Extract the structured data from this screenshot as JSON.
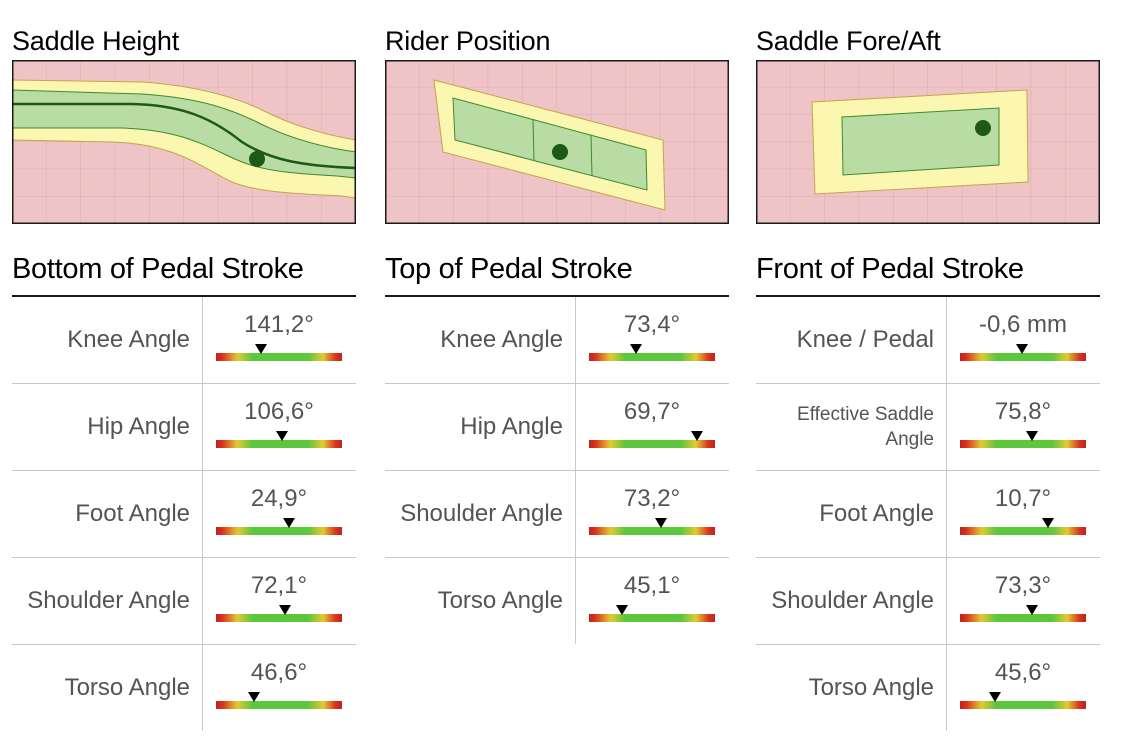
{
  "plots": {
    "saddle_height": {
      "title": "Saddle Height"
    },
    "rider_position": {
      "title": "Rider Position"
    },
    "saddle_fore_aft": {
      "title": "Saddle Fore/Aft"
    }
  },
  "colors": {
    "out_of_range": "#eec4c6",
    "caution": "#fbf6b0",
    "in_range": "#b9dba4",
    "dot": "#1d5a16"
  },
  "sections": {
    "bottom": {
      "title": "Bottom of Pedal Stroke",
      "rows": [
        {
          "label": "Knee Angle",
          "value": "141,2°",
          "gauge": 0.36
        },
        {
          "label": "Hip Angle",
          "value": "106,6°",
          "gauge": 0.52
        },
        {
          "label": "Foot Angle",
          "value": "24,9°",
          "gauge": 0.58
        },
        {
          "label": "Shoulder Angle",
          "value": "72,1°",
          "gauge": 0.55
        },
        {
          "label": "Torso Angle",
          "value": "46,6°",
          "gauge": 0.3
        }
      ]
    },
    "top": {
      "title": "Top of Pedal Stroke",
      "rows": [
        {
          "label": "Knee Angle",
          "value": "73,4°",
          "gauge": 0.37
        },
        {
          "label": "Hip Angle",
          "value": "69,7°",
          "gauge": 0.86
        },
        {
          "label": "Shoulder Angle",
          "value": "73,2°",
          "gauge": 0.57
        },
        {
          "label": "Torso Angle",
          "value": "45,1°",
          "gauge": 0.26
        }
      ]
    },
    "front": {
      "title": "Front of Pedal Stroke",
      "rows": [
        {
          "label": "Knee / Pedal",
          "value": "-0,6 mm",
          "gauge": 0.49
        },
        {
          "label": "Effective Saddle Angle",
          "value": "75,8°",
          "gauge": 0.57
        },
        {
          "label": "Foot Angle",
          "value": "10,7°",
          "gauge": 0.7
        },
        {
          "label": "Shoulder Angle",
          "value": "73,3°",
          "gauge": 0.57
        },
        {
          "label": "Torso Angle",
          "value": "45,6°",
          "gauge": 0.28
        }
      ]
    }
  }
}
